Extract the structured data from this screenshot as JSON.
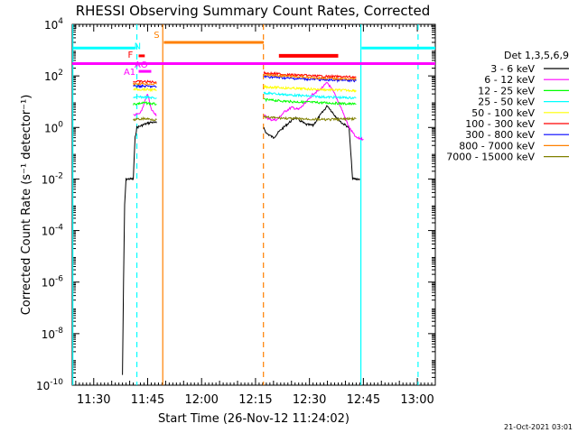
{
  "chart_data": {
    "type": "line",
    "title": "RHESSI Observing Summary Count Rates, Corrected",
    "xlabel": "Start Time (26-Nov-12 11:24:02)",
    "ylabel": "Corrected Count Rate (s⁻¹ detector⁻¹)",
    "x_ticks": [
      "11:30",
      "11:45",
      "12:00",
      "12:15",
      "12:30",
      "12:45",
      "13:00"
    ],
    "x_tick_minutes": [
      690,
      705,
      720,
      735,
      750,
      765,
      780
    ],
    "x_range_minutes": [
      684.03,
      785
    ],
    "y_scale": "log",
    "ylim": [
      1e-10,
      10000
    ],
    "y_ticks": [
      {
        "base": "10",
        "exp": "-10",
        "value": -10
      },
      {
        "base": "10",
        "exp": "-8",
        "value": -8
      },
      {
        "base": "10",
        "exp": "-6",
        "value": -6
      },
      {
        "base": "10",
        "exp": "-4",
        "value": -4
      },
      {
        "base": "10",
        "exp": "-2",
        "value": -2
      },
      {
        "base": "10",
        "exp": "0",
        "value": 0
      },
      {
        "base": "10",
        "exp": "2",
        "value": 2
      },
      {
        "base": "10",
        "exp": "4",
        "value": 4
      }
    ],
    "legend_title": "Det 1,3,5,6,9",
    "legend_position": "right",
    "series": [
      {
        "name": "3 - 6 keV",
        "color": "#000000",
        "segments": [
          [
            [
              698,
              2.5e-10
            ],
            [
              698.3,
              1e-06
            ],
            [
              698.6,
              0.001
            ],
            [
              699,
              0.01
            ],
            [
              700,
              0.01
            ],
            [
              701,
              0.01
            ],
            [
              701.5,
              0.4
            ],
            [
              702,
              1.0
            ],
            [
              704,
              1.3
            ],
            [
              706,
              1.6
            ],
            [
              707.5,
              1.5
            ]
          ],
          [
            [
              737.3,
              1.0
            ],
            [
              738,
              0.6
            ],
            [
              740,
              0.4
            ],
            [
              742,
              0.8
            ],
            [
              744,
              1.4
            ],
            [
              746,
              2.4
            ],
            [
              747,
              2.0
            ],
            [
              749,
              1.3
            ],
            [
              751,
              1.2
            ],
            [
              753,
              3.0
            ],
            [
              755,
              7.0
            ],
            [
              757,
              3.0
            ],
            [
              759,
              1.5
            ],
            [
              761,
              1.0
            ],
            [
              762,
              0.01
            ],
            [
              764,
              0.01
            ]
          ]
        ]
      },
      {
        "name": "6 - 12 keV",
        "color": "#ff00ff",
        "segments": [
          [
            [
              701,
              3.0
            ],
            [
              703,
              3.5
            ],
            [
              705,
              20
            ],
            [
              706,
              5
            ],
            [
              707.5,
              3
            ]
          ],
          [
            [
              737.3,
              3
            ],
            [
              739,
              2
            ],
            [
              741,
              2
            ],
            [
              743,
              4
            ],
            [
              745,
              6
            ],
            [
              747,
              5
            ],
            [
              749,
              9
            ],
            [
              751,
              20
            ],
            [
              753,
              30
            ],
            [
              755,
              55
            ],
            [
              757,
              20
            ],
            [
              759,
              5
            ],
            [
              761,
              1.0
            ],
            [
              763,
              0.4
            ],
            [
              765,
              0.35
            ]
          ]
        ]
      },
      {
        "name": "12 - 25 keV",
        "color": "#00ff00",
        "segments": [
          [
            [
              701,
              8
            ],
            [
              704,
              9
            ],
            [
              707.5,
              8
            ]
          ],
          [
            [
              737.3,
              12
            ],
            [
              745,
              10
            ],
            [
              755,
              9
            ],
            [
              763,
              8
            ]
          ]
        ]
      },
      {
        "name": "25 - 50 keV",
        "color": "#00ffff",
        "segments": [
          [
            [
              701,
              15
            ],
            [
              704,
              15
            ],
            [
              707.5,
              14
            ]
          ],
          [
            [
              737.3,
              22
            ],
            [
              745,
              18
            ],
            [
              755,
              15
            ],
            [
              763,
              14
            ]
          ]
        ]
      },
      {
        "name": "50 - 100 keV",
        "color": "#ffff00",
        "segments": [
          [
            [
              701,
              30
            ],
            [
              704,
              30
            ],
            [
              707.5,
              28
            ]
          ],
          [
            [
              737.3,
              38
            ],
            [
              745,
              33
            ],
            [
              755,
              29
            ],
            [
              763,
              27
            ]
          ]
        ]
      },
      {
        "name": "100 - 300 keV",
        "color": "#ff0000",
        "segments": [
          [
            [
              701,
              60
            ],
            [
              704,
              60
            ],
            [
              707.5,
              58
            ]
          ],
          [
            [
              737.3,
              130
            ],
            [
              745,
              110
            ],
            [
              755,
              95
            ],
            [
              763,
              90
            ]
          ]
        ]
      },
      {
        "name": "300 - 800 keV",
        "color": "#0000ff",
        "segments": [
          [
            [
              701,
              40
            ],
            [
              704,
              40
            ],
            [
              707.5,
              38
            ]
          ],
          [
            [
              737.3,
              95
            ],
            [
              745,
              80
            ],
            [
              755,
              70
            ],
            [
              763,
              65
            ]
          ]
        ]
      },
      {
        "name": "800 - 7000 keV",
        "color": "#ff8000",
        "segments": [
          [
            [
              701,
              50
            ],
            [
              704,
              50
            ],
            [
              707.5,
              48
            ]
          ],
          [
            [
              737.3,
              110
            ],
            [
              745,
              95
            ],
            [
              755,
              80
            ],
            [
              763,
              75
            ]
          ]
        ]
      },
      {
        "name": "7000 - 15000 keV",
        "color": "#808000",
        "segments": [
          [
            [
              701,
              2
            ],
            [
              704,
              2.2
            ],
            [
              707.5,
              2.0
            ]
          ],
          [
            [
              737.3,
              2.5
            ],
            [
              745,
              2.2
            ],
            [
              755,
              2.0
            ],
            [
              763,
              2.2
            ]
          ]
        ]
      }
    ],
    "annotations": {
      "attenuator_level": {
        "color": "#ff00ff",
        "value": 300
      },
      "saa_bars": [
        {
          "x": [
            684.03,
            701.5
          ],
          "value": 1200,
          "color": "#00ffff"
        },
        {
          "x": [
            764.5,
            785
          ],
          "value": 1200,
          "color": "#00ffff"
        }
      ],
      "orange_bar": {
        "x": [
          709.5,
          737.3
        ],
        "value": 2000,
        "color": "#ff8000"
      },
      "red_bar": {
        "x": [
          741.5,
          758
        ],
        "value": 600,
        "color": "#ff0000"
      },
      "labels": [
        {
          "text": "S",
          "x": 707.5,
          "y": 3000,
          "color": "#ff8000"
        },
        {
          "text": "N",
          "x": 702.2,
          "y": 1100,
          "color": "#00ffff"
        },
        {
          "text": "F",
          "x": 700.2,
          "y": 500,
          "color": "#ff0000"
        },
        {
          "text": "AO",
          "x": 703.2,
          "y": 210,
          "color": "#ff00ff"
        },
        {
          "text": "A1",
          "x": 700.0,
          "y": 110,
          "color": "#ff00ff"
        }
      ],
      "small_bars": [
        {
          "x": [
            702.5,
            704.2
          ],
          "value": 600,
          "color": "#ff0000"
        },
        {
          "x": [
            702.5,
            706
          ],
          "value": 150,
          "color": "#ff00ff"
        }
      ],
      "vertical_lines": [
        {
          "x": 684.2,
          "color": "#00ffff",
          "dash": false
        },
        {
          "x": 702.0,
          "color": "#00ffff",
          "dash": true
        },
        {
          "x": 709.2,
          "color": "#ff8000",
          "dash": false
        },
        {
          "x": 737.2,
          "color": "#ff8000",
          "dash": true
        },
        {
          "x": 764.3,
          "color": "#00ffff",
          "dash": false
        },
        {
          "x": 780.2,
          "color": "#00ffff",
          "dash": true
        }
      ]
    }
  },
  "footer_date": "21-Oct-2021 03:01"
}
